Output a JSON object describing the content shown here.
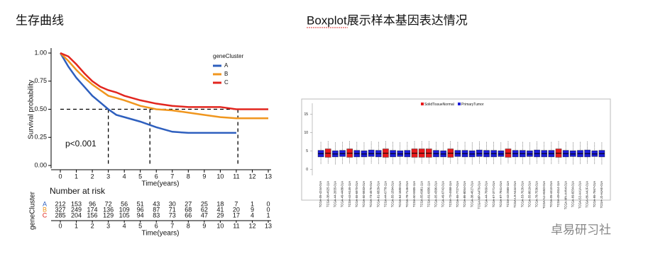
{
  "header": {
    "left_title": "生存曲线",
    "right_title": "Boxplot展示样本基因表达情况",
    "watermark": "卓易研习社"
  },
  "chart_data": [
    {
      "type": "line",
      "xlabel": "Time(years)",
      "ylabel": "Survival probability",
      "legend_title": "geneCluster",
      "annotation": "p<0.001",
      "x": [
        0,
        0.5,
        1,
        1.5,
        2,
        2.5,
        3,
        3.5,
        4,
        5,
        6,
        7,
        8,
        9,
        10,
        11,
        12,
        13
      ],
      "series": [
        {
          "name": "A",
          "color": "#2e5fbe",
          "values": [
            1,
            0.88,
            0.78,
            0.7,
            0.62,
            0.56,
            0.5,
            0.45,
            0.43,
            0.39,
            0.34,
            0.3,
            0.29,
            0.29,
            0.29,
            0.29,
            null,
            null
          ]
        },
        {
          "name": "B",
          "color": "#f0961e",
          "values": [
            1,
            0.93,
            0.85,
            0.78,
            0.72,
            0.67,
            0.62,
            0.6,
            0.58,
            0.53,
            0.5,
            0.49,
            0.47,
            0.45,
            0.43,
            0.42,
            0.42,
            0.42
          ]
        },
        {
          "name": "C",
          "color": "#e2261f",
          "values": [
            1,
            0.97,
            0.9,
            0.82,
            0.75,
            0.7,
            0.67,
            0.65,
            0.62,
            0.58,
            0.55,
            0.53,
            0.52,
            0.52,
            0.52,
            0.5,
            0.5,
            0.5
          ]
        }
      ],
      "median_survival": {
        "y": 0.5,
        "x": [
          3,
          5.6,
          11.1
        ]
      },
      "xlim": [
        0,
        13
      ],
      "xticks": [
        0,
        1,
        2,
        3,
        4,
        5,
        6,
        7,
        8,
        9,
        10,
        11,
        12,
        13
      ],
      "ylim": [
        0,
        1
      ],
      "yticks": [
        {
          "value": 0,
          "label": "0.00"
        },
        {
          "value": 0.25,
          "label": "0.25"
        },
        {
          "value": 0.5,
          "label": "0.50"
        },
        {
          "value": 0.75,
          "label": "0.75"
        },
        {
          "value": 1,
          "label": "1.00"
        }
      ],
      "risk_table": {
        "title": "Number at risk",
        "ylabel": "geneCluster",
        "rows": [
          [
            212,
            153,
            96,
            72,
            56,
            51,
            43,
            30,
            27,
            25,
            18,
            7,
            1,
            0
          ],
          [
            327,
            249,
            174,
            136,
            109,
            96,
            87,
            71,
            68,
            62,
            41,
            20,
            9,
            0
          ],
          [
            285,
            204,
            156,
            129,
            105,
            94,
            83,
            73,
            66,
            47,
            29,
            17,
            4,
            1
          ]
        ]
      }
    },
    {
      "type": "box",
      "series": [
        {
          "name": "SolidTissueNormal",
          "color": "#e8191c"
        },
        {
          "name": "PrimaryTumor",
          "color": "#1c1cd8"
        }
      ],
      "categories": [
        "TCGA-05-4244-01A",
        "TCGA-38-4625-11A",
        "TCGA-44-2655-01A",
        "TCGA-49-4488-01A",
        "TCGA-44-6146-11A",
        "TCGA-55-6970-01A",
        "TCGA-50-5933-01A",
        "TCGA-73-4676-01A",
        "TCGA-91-6829-01A",
        "TCGA-44-6778-11A",
        "TCGA-55-1594-01A",
        "TCGA-64-1680-01A",
        "TCGA-78-7146-01A",
        "TCGA-50-5935-11A",
        "TCGA-55-6981-11A",
        "TCGA-91-6836-11A",
        "TCGA-05-4396-01A",
        "TCGA-49-6742-01A",
        "TCGA-73-4658-11A",
        "TCGA-55-7727-01A",
        "TCGA-86-8054-01A",
        "TCGA-38-4627-01A",
        "TCGA-MP-A4T6-01A",
        "TCGA-44-7660-01A",
        "TCGA-67-3771-01A",
        "TCGA-97-7941-01A",
        "TCGA-44-2665-11A",
        "TCGA-L9-A444-01A",
        "TCGA-53-7626-01A",
        "TCGA-55-8619-01A",
        "TCGA-78-7536-01A",
        "TCGA-NJ-A55O-01A",
        "TCGA-05-4410-01A",
        "TCGA-49-4514-11A",
        "TCGA-MN-A4N4-01A",
        "TCGA-69-8254-01A",
        "TCGA-S2-AA1A-01A",
        "TCGA-86-A4JF-01A",
        "TCGA-95-7567-01A",
        "TCGA-J2-A4AE-01A"
      ],
      "group": [
        1,
        0,
        1,
        1,
        0,
        1,
        1,
        1,
        1,
        0,
        1,
        1,
        1,
        0,
        0,
        0,
        1,
        1,
        0,
        1,
        1,
        1,
        1,
        1,
        1,
        1,
        0,
        1,
        1,
        1,
        1,
        1,
        1,
        0,
        1,
        1,
        1,
        1,
        1,
        1
      ],
      "whislo": [
        1.5,
        1.6,
        1.4,
        1.5,
        1.7,
        1.5,
        1.4,
        1.6,
        1.5,
        1.6,
        1.5,
        1.4,
        1.5,
        1.7,
        1.6,
        1.6,
        1.5,
        1.4,
        1.6,
        1.5,
        1.5,
        1.4,
        1.6,
        1.5,
        1.5,
        1.4,
        1.7,
        1.5,
        1.5,
        1.4,
        1.6,
        1.5,
        1.5,
        1.6,
        1.5,
        1.4,
        1.5,
        1.6,
        1.5,
        1.4
      ],
      "q1": [
        3.4,
        3.3,
        3.4,
        3.5,
        3.3,
        3.4,
        3.4,
        3.5,
        3.4,
        3.3,
        3.4,
        3.5,
        3.4,
        3.3,
        3.3,
        3.3,
        3.4,
        3.4,
        3.3,
        3.5,
        3.4,
        3.4,
        3.5,
        3.4,
        3.4,
        3.5,
        3.3,
        3.4,
        3.4,
        3.5,
        3.4,
        3.4,
        3.4,
        3.3,
        3.4,
        3.5,
        3.4,
        3.4,
        3.5,
        3.4
      ],
      "median": [
        4.3,
        4.4,
        4.2,
        4.3,
        4.4,
        4.3,
        4.2,
        4.3,
        4.3,
        4.4,
        4.3,
        4.2,
        4.3,
        4.4,
        4.4,
        4.4,
        4.3,
        4.2,
        4.4,
        4.3,
        4.3,
        4.2,
        4.3,
        4.3,
        4.3,
        4.2,
        4.4,
        4.3,
        4.3,
        4.2,
        4.3,
        4.3,
        4.3,
        4.4,
        4.3,
        4.2,
        4.3,
        4.3,
        4.2,
        4.3
      ],
      "q3": [
        5.2,
        5.6,
        5.1,
        5.2,
        5.6,
        5.2,
        5.1,
        5.3,
        5.2,
        5.6,
        5.2,
        5.1,
        5.2,
        5.6,
        5.6,
        5.6,
        5.2,
        5.1,
        5.6,
        5.2,
        5.2,
        5.1,
        5.3,
        5.2,
        5.2,
        5.1,
        5.6,
        5.2,
        5.2,
        5.1,
        5.3,
        5.2,
        5.2,
        5.6,
        5.2,
        5.1,
        5.2,
        5.3,
        5.1,
        5.2
      ],
      "whishi": [
        7.5,
        7.8,
        7.4,
        7.5,
        7.8,
        7.5,
        7.4,
        7.6,
        7.5,
        7.8,
        7.5,
        7.4,
        7.5,
        7.8,
        7.8,
        7.8,
        7.5,
        7.4,
        7.8,
        7.5,
        7.5,
        7.4,
        7.6,
        7.5,
        7.5,
        7.4,
        7.8,
        7.5,
        7.5,
        7.4,
        7.6,
        7.5,
        7.5,
        7.8,
        7.5,
        7.4,
        7.5,
        7.6,
        7.4,
        7.5
      ],
      "ylim": [
        -2,
        18
      ],
      "yticks": [
        0,
        5,
        10,
        15
      ]
    }
  ]
}
